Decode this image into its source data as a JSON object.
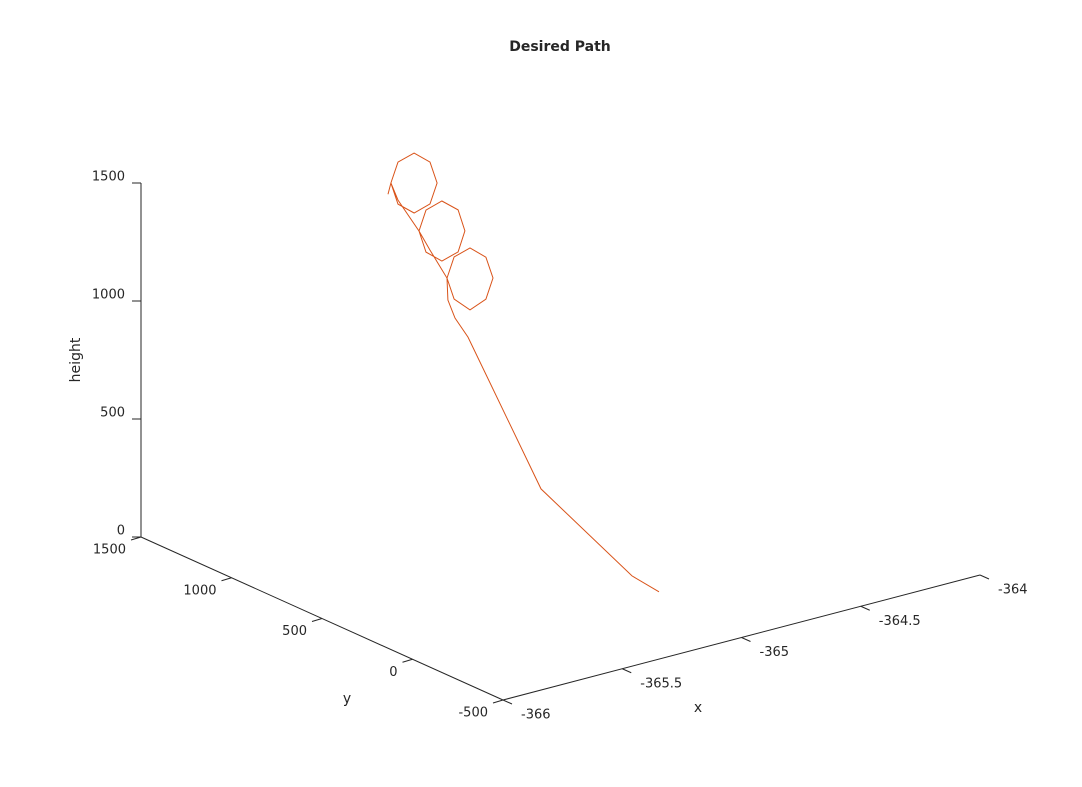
{
  "chart_data": {
    "type": "line3d",
    "title": "Desired Path",
    "xlabel": "x",
    "ylabel": "y",
    "zlabel": "height",
    "color": "#d95319",
    "xlim": [
      -366,
      -364
    ],
    "xticks": [
      -366,
      -365.5,
      -365,
      -364.5,
      -364
    ],
    "ylim": [
      -500,
      1500
    ],
    "yticks": [
      -500,
      0,
      500,
      1000,
      1500
    ],
    "zlim": [
      0,
      1500
    ],
    "zticks": [
      0,
      500,
      1000,
      1500
    ],
    "x": [
      -365,
      -365,
      -365,
      -365,
      -365,
      -365,
      -365,
      -365,
      -365,
      -365,
      -365,
      -365,
      -365,
      -365,
      -365,
      -365,
      -365,
      -365,
      -365,
      -365,
      -365,
      -365,
      -365,
      -365,
      -365,
      -365,
      -365,
      -365,
      -365,
      -365,
      -365,
      -365,
      -365,
      -365,
      -365,
      -365
    ],
    "y": [
      -44,
      105,
      608,
      1011,
      1083,
      1122,
      1127,
      1088,
      1000,
      912,
      873,
      912,
      1000,
      1088,
      1127,
      1221,
      1282,
      1243,
      1155,
      1066,
      1028,
      1066,
      1155,
      1243,
      1282,
      1398,
      1437,
      1398,
      1309,
      1221,
      1182,
      1221,
      1309,
      1398,
      1437,
      1453
    ],
    "z": [
      36,
      52,
      247,
      751,
      807,
      870,
      961,
      886,
      870,
      946,
      1049,
      1124,
      1133,
      1064,
      961,
      1047,
      1107,
      1031,
      1024,
      1093,
      1195,
      1271,
      1278,
      1209,
      1107,
      1198,
      1257,
      1181,
      1174,
      1243,
      1345,
      1420,
      1428,
      1359,
      1257,
      1204
    ]
  }
}
